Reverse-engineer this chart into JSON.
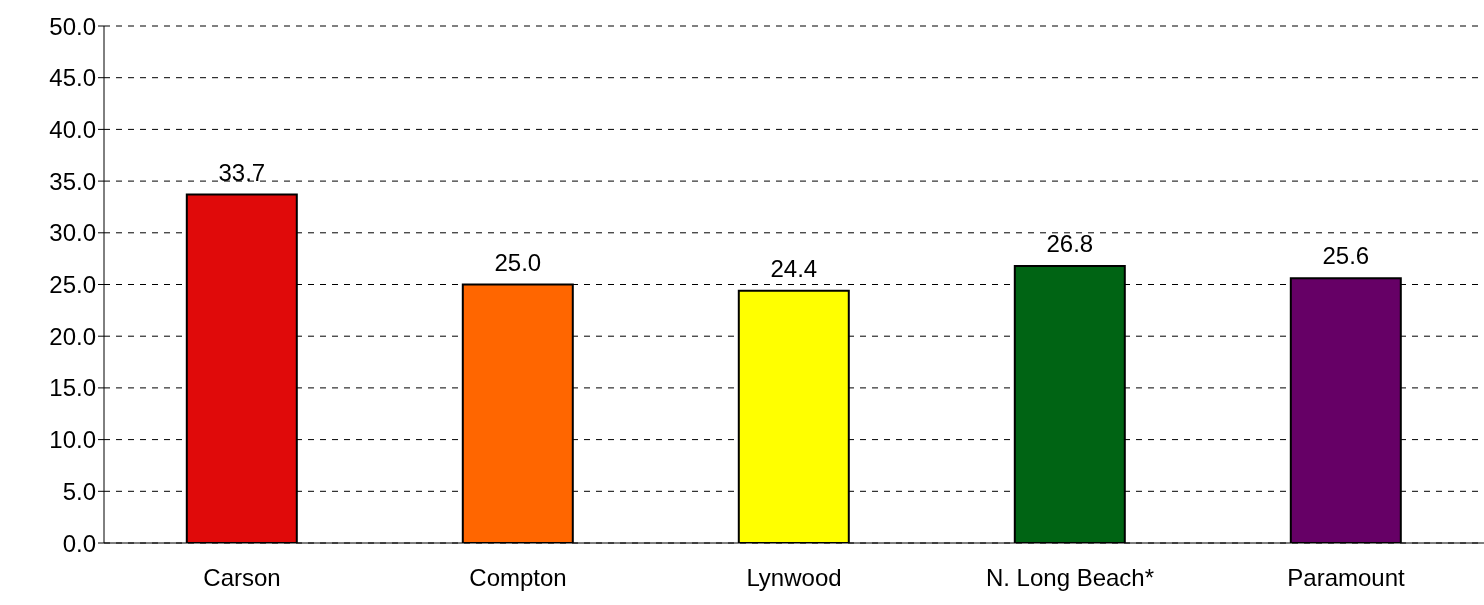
{
  "chart_data": {
    "type": "bar",
    "categories": [
      "Carson",
      "Compton",
      "Lynwood",
      "N. Long Beach*",
      "Paramount"
    ],
    "values": [
      33.7,
      25.0,
      24.4,
      26.8,
      25.6
    ],
    "colors": [
      "#e00a0a",
      "#ff6600",
      "#ffff00",
      "#006414",
      "#660066"
    ],
    "value_labels": [
      "33.7",
      "25.0",
      "24.4",
      "26.8",
      "25.6"
    ],
    "ylim": [
      0,
      50
    ],
    "yticks": [
      {
        "value": 0,
        "label": "0.0"
      },
      {
        "value": 5,
        "label": "5.0"
      },
      {
        "value": 10,
        "label": "10.0"
      },
      {
        "value": 15,
        "label": "15.0"
      },
      {
        "value": 20,
        "label": "20.0"
      },
      {
        "value": 25,
        "label": "25.0"
      },
      {
        "value": 30,
        "label": "30.0"
      },
      {
        "value": 35,
        "label": "35.0"
      },
      {
        "value": 40,
        "label": "40.0"
      },
      {
        "value": 45,
        "label": "45.0"
      },
      {
        "value": 50,
        "label": "50.0"
      }
    ],
    "grid": "y"
  }
}
